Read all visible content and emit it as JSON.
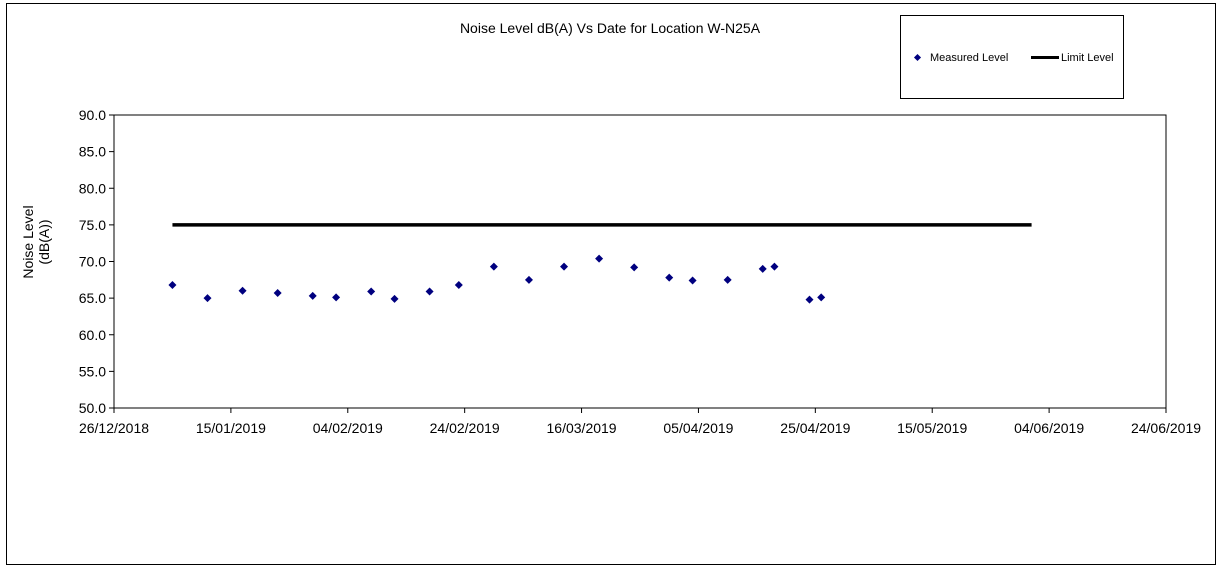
{
  "chart_data": {
    "type": "scatter",
    "title": "Noise Level dB(A) Vs Date for Location W-N25A",
    "ylabel_lines": [
      "Noise Level",
      "(dB(A))"
    ],
    "xlabel": "",
    "ylim": [
      50,
      90
    ],
    "y_ticks": [
      "50.0",
      "55.0",
      "60.0",
      "65.0",
      "70.0",
      "75.0",
      "80.0",
      "85.0",
      "90.0"
    ],
    "xlim": [
      "2018-12-26",
      "2019-06-24"
    ],
    "x_ticks": [
      "26/12/2018",
      "15/01/2019",
      "04/02/2019",
      "24/02/2019",
      "16/03/2019",
      "05/04/2019",
      "25/04/2019",
      "15/05/2019",
      "04/06/2019",
      "24/06/2019"
    ],
    "grid": false,
    "legend_position": "top-right",
    "series": [
      {
        "name": "Measured Level",
        "marker": "diamond",
        "color": "#00007f",
        "points": [
          {
            "x": "2019-01-05",
            "y": 66.8
          },
          {
            "x": "2019-01-11",
            "y": 65.0
          },
          {
            "x": "2019-01-17",
            "y": 66.0
          },
          {
            "x": "2019-01-23",
            "y": 65.7
          },
          {
            "x": "2019-01-29",
            "y": 65.3
          },
          {
            "x": "2019-02-02",
            "y": 65.1
          },
          {
            "x": "2019-02-08",
            "y": 65.9
          },
          {
            "x": "2019-02-12",
            "y": 64.9
          },
          {
            "x": "2019-02-18",
            "y": 65.9
          },
          {
            "x": "2019-02-23",
            "y": 66.8
          },
          {
            "x": "2019-03-01",
            "y": 69.3
          },
          {
            "x": "2019-03-07",
            "y": 67.5
          },
          {
            "x": "2019-03-13",
            "y": 69.3
          },
          {
            "x": "2019-03-19",
            "y": 70.4
          },
          {
            "x": "2019-03-25",
            "y": 69.2
          },
          {
            "x": "2019-03-31",
            "y": 67.8
          },
          {
            "x": "2019-04-04",
            "y": 67.4
          },
          {
            "x": "2019-04-10",
            "y": 67.5
          },
          {
            "x": "2019-04-16",
            "y": 69.0
          },
          {
            "x": "2019-04-18",
            "y": 69.3
          },
          {
            "x": "2019-04-24",
            "y": 64.8
          },
          {
            "x": "2019-04-26",
            "y": 65.1
          }
        ]
      },
      {
        "name": "Limit Level",
        "marker": "line",
        "color": "#000000",
        "points": [
          {
            "x": "2019-01-05",
            "y": 75.0
          },
          {
            "x": "2019-06-01",
            "y": 75.0
          }
        ]
      }
    ]
  }
}
